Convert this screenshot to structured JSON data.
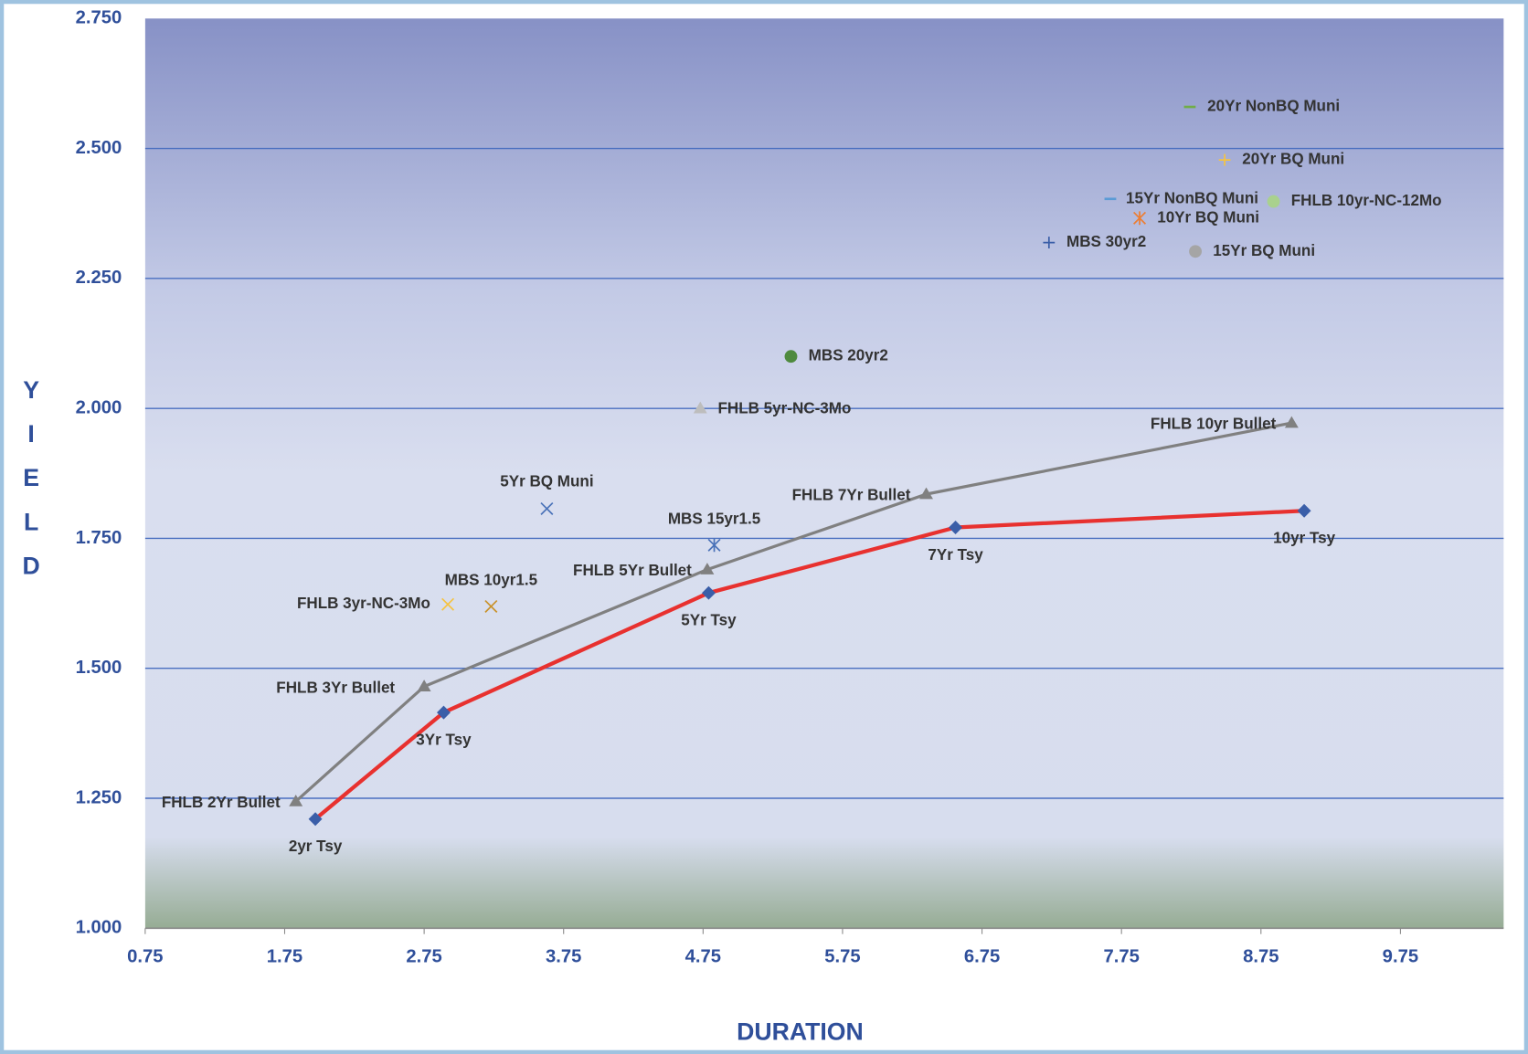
{
  "chart_data": {
    "type": "scatter",
    "x_label": "DURATION",
    "y_label": "YIELD",
    "xlim": [
      0.75,
      10.49
    ],
    "xticks": [
      0.75,
      1.75,
      2.75,
      3.75,
      4.75,
      5.75,
      6.75,
      7.75,
      8.75,
      9.75
    ],
    "ylim": [
      1.0,
      2.75
    ],
    "yticks": [
      {
        "value": 1.0,
        "label": "1.000"
      },
      {
        "value": 1.25,
        "label": "1.250"
      },
      {
        "value": 1.5,
        "label": "1.500"
      },
      {
        "value": 1.75,
        "label": "1.750"
      },
      {
        "value": 2.0,
        "label": "2.000"
      },
      {
        "value": 2.25,
        "label": "2.250"
      },
      {
        "value": 2.5,
        "label": "2.500"
      },
      {
        "value": 2.75,
        "label": "2.750"
      }
    ],
    "grid": true,
    "series": [
      {
        "marker": "diamond",
        "color": "#3a5ea8",
        "line_color": "#e8312f",
        "x": [
          1.97,
          2.89,
          4.79,
          6.56,
          9.06
        ],
        "values": [
          1.21,
          1.415,
          1.645,
          1.771,
          1.803
        ],
        "labels": [
          "2yr Tsy",
          "3Yr Tsy",
          "5Yr Tsy",
          "7Yr Tsy",
          "10yr Tsy"
        ]
      },
      {
        "marker": "triangle",
        "color": "#808080",
        "line_color": "#808080",
        "x": [
          1.83,
          2.75,
          4.78,
          6.35,
          8.97
        ],
        "values": [
          1.244,
          1.465,
          1.69,
          1.835,
          1.972
        ],
        "labels": [
          "FHLB 2Yr Bullet",
          "FHLB 3Yr Bullet",
          "FHLB 5Yr Bullet",
          "FHLB 7Yr Bullet",
          "FHLB 10yr Bullet"
        ]
      },
      {
        "name": "FHLB 5yr-NC-3Mo",
        "marker": "triangle",
        "color": "#bdbdbd",
        "x": [
          4.73
        ],
        "values": [
          2.0
        ]
      },
      {
        "name": "MBS 20yr2",
        "marker": "circle",
        "color": "#4e8a3e",
        "x": [
          5.38
        ],
        "values": [
          2.1
        ]
      },
      {
        "name": "5Yr BQ Muni",
        "marker": "x",
        "color": "#4a72b8",
        "x": [
          3.63
        ],
        "values": [
          1.807
        ]
      },
      {
        "name": "MBS 15yr1.5",
        "marker": "asterisk",
        "color": "#4a72b8",
        "x": [
          4.83
        ],
        "values": [
          1.737
        ]
      },
      {
        "name": "FHLB 3yr-NC-3Mo",
        "marker": "x",
        "color": "#f5c342",
        "x": [
          2.92
        ],
        "values": [
          1.623
        ]
      },
      {
        "name": "MBS 10yr1.5",
        "marker": "x",
        "color": "#c9922a",
        "x": [
          3.23
        ],
        "values": [
          1.619
        ]
      },
      {
        "name": "MBS 30yr2",
        "marker": "plus",
        "color": "#3a5ea8",
        "x": [
          7.23
        ],
        "values": [
          2.319
        ]
      },
      {
        "name": "15Yr BQ Muni",
        "marker": "circle",
        "color": "#a5a5a5",
        "x": [
          8.28
        ],
        "values": [
          2.302
        ]
      },
      {
        "name": "10Yr BQ Muni",
        "marker": "asterisk",
        "color": "#ed7d31",
        "x": [
          7.88
        ],
        "values": [
          2.366
        ]
      },
      {
        "name": "15Yr NonBQ Muni",
        "marker": "dash",
        "color": "#5b9bd5",
        "x": [
          7.67
        ],
        "values": [
          2.403
        ]
      },
      {
        "name": "FHLB 10yr-NC-12Mo",
        "marker": "circle",
        "color": "#a9d18e",
        "x": [
          8.84
        ],
        "values": [
          2.398
        ]
      },
      {
        "name": "20Yr BQ Muni",
        "marker": "plus",
        "color": "#f5c342",
        "x": [
          8.49
        ],
        "values": [
          2.478
        ]
      },
      {
        "name": "20Yr NonBQ Muni",
        "marker": "dash",
        "color": "#70ad47",
        "x": [
          8.24
        ],
        "values": [
          2.58
        ]
      }
    ]
  }
}
